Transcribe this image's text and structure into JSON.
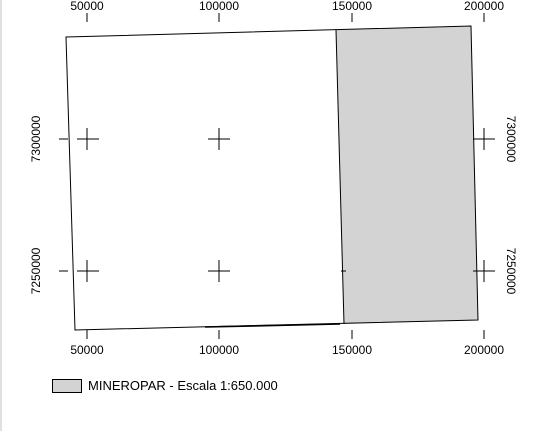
{
  "map": {
    "x_ticks_top": [
      "50000",
      "100000",
      "150000",
      "200000"
    ],
    "x_ticks_bottom": [
      "50000",
      "100000",
      "150000",
      "200000"
    ],
    "y_ticks_left": [
      "7300000",
      "7250000"
    ],
    "y_ticks_right": [
      "7300000",
      "7250000"
    ]
  },
  "legend": {
    "label": "MINEROPAR - Escala 1:650.000",
    "swatch_color": "#d3d3d3"
  },
  "colors": {
    "region_fill": "#d3d3d3",
    "frame_stroke": "#000000"
  }
}
